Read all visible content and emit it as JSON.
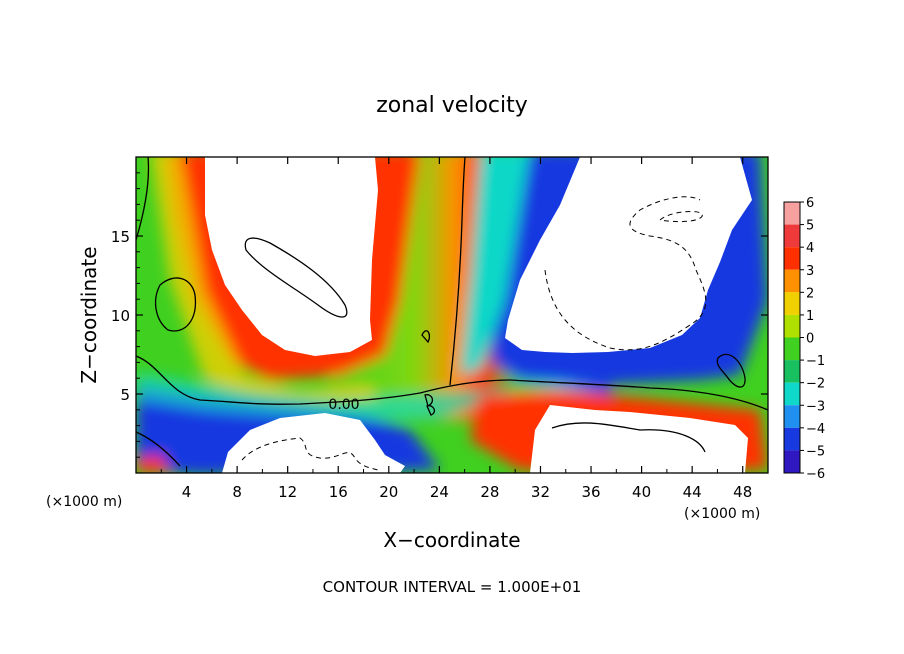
{
  "chart_data": {
    "type": "heatmap",
    "title": "zonal velocity",
    "xlabel": "X−coordinate",
    "ylabel": "Z−coordinate",
    "x_unit": "(×1000 m)",
    "y_unit": "(×1000 m)",
    "xlim": [
      0,
      50
    ],
    "ylim": [
      0,
      20
    ],
    "x_ticks": [
      4,
      8,
      12,
      16,
      20,
      24,
      28,
      32,
      36,
      40,
      44,
      48
    ],
    "y_ticks": [
      5,
      10,
      15
    ],
    "colorbar": {
      "levels": [
        6,
        5,
        4,
        3,
        2,
        1,
        0,
        -1,
        -2,
        -3,
        -4,
        -5,
        -6
      ],
      "tick_labels": [
        "6",
        "5",
        "4",
        "3",
        "2",
        "1",
        "0",
        "−1",
        "−2",
        "−3",
        "−4",
        "−5",
        "−6"
      ],
      "colors": [
        "#f6a0a0",
        "#ee3a3a",
        "#ff3000",
        "#ff9000",
        "#f0d000",
        "#b0e000",
        "#40d020",
        "#18c060",
        "#10d8c8",
        "#2090f0",
        "#1838e0",
        "#3018c0",
        "#6010b0"
      ]
    },
    "annotations": [
      "0.00"
    ],
    "footer": "CONTOUR INTERVAL = 1.000E+01",
    "grid": false,
    "legend": "colorbar-right"
  }
}
